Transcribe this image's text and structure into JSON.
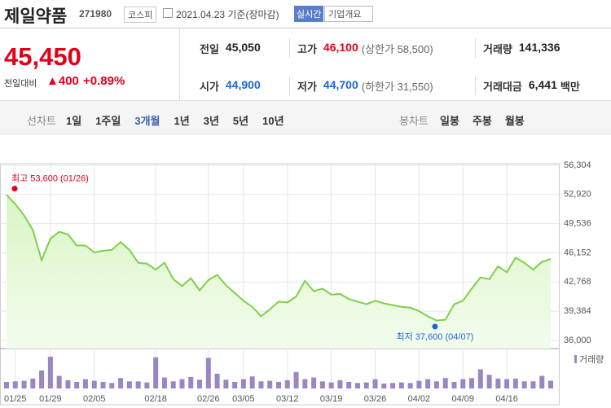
{
  "header": {
    "title": "제일약품",
    "code": "271980",
    "market": "코스피",
    "date": "2021.04.23 기준(장마감)",
    "realtime": "실시간",
    "company": "기업개요"
  },
  "summary": {
    "price": "45,450",
    "change_label": "전일대비",
    "change": "▲400",
    "change_pct": "+0.89%",
    "stats": [
      {
        "label": "전일",
        "value": "45,050"
      },
      {
        "label": "고가",
        "value": "46,100",
        "note": "(상한가 58,500)"
      },
      {
        "label": "거래량",
        "value": "141,336"
      },
      {
        "label": "시가",
        "value": "44,900"
      },
      {
        "label": "저가",
        "value": "44,700",
        "note": "(하한가 31,550)"
      },
      {
        "label": "거래대금",
        "value": "6,441",
        "unit": "백만"
      }
    ]
  },
  "nav": {
    "line_label": "선차트",
    "line_items": [
      "1일",
      "1주일",
      "3개월",
      "1년",
      "3년",
      "5년",
      "10년"
    ],
    "active": "3개월",
    "candle_label": "봉차트",
    "candle_items": [
      "일봉",
      "주봉",
      "월봉"
    ]
  },
  "chart_data": [
    {
      "type": "area",
      "color": "#7ed04b",
      "categories": [
        null,
        "01/25",
        null,
        null,
        null,
        "01/29",
        null,
        null,
        null,
        null,
        "02/05",
        null,
        null,
        null,
        null,
        null,
        null,
        "02/18",
        null,
        null,
        null,
        null,
        null,
        "02/26",
        null,
        null,
        null,
        "03/05",
        null,
        null,
        null,
        null,
        "03/12",
        null,
        null,
        null,
        null,
        "03/19",
        null,
        null,
        null,
        null,
        "03/26",
        null,
        null,
        null,
        null,
        "04/02",
        null,
        null,
        null,
        null,
        "04/09",
        null,
        null,
        null,
        null,
        "04/16",
        null,
        null,
        null,
        null,
        null
      ],
      "values": [
        52900,
        51800,
        50500,
        48800,
        45300,
        47800,
        48600,
        48300,
        47000,
        47000,
        46200,
        46400,
        46500,
        47400,
        46500,
        45000,
        44900,
        44200,
        45000,
        43100,
        42300,
        43200,
        41800,
        43000,
        43600,
        42400,
        41500,
        40600,
        39900,
        38800,
        39600,
        40500,
        40400,
        41100,
        42900,
        41700,
        42000,
        41300,
        41400,
        40800,
        40500,
        40200,
        40600,
        40300,
        40100,
        39900,
        39800,
        39400,
        38800,
        38300,
        38400,
        40200,
        40600,
        42000,
        43300,
        43100,
        44600,
        43900,
        45600,
        45000,
        44200,
        45100,
        45450
      ],
      "ylim": [
        36000,
        56304
      ],
      "yticks": [
        {
          "value": 36000,
          "label": "36,000"
        },
        {
          "value": 39384,
          "label": "39,384"
        },
        {
          "value": 42768,
          "label": "42,768"
        },
        {
          "value": 46152,
          "label": "46,152"
        },
        {
          "value": 49536,
          "label": "49,536"
        },
        {
          "value": 52920,
          "label": "52,920"
        },
        {
          "value": 56304,
          "label": "56,304"
        }
      ],
      "grid": true,
      "high": {
        "label": "최고 53,600 (01/26)",
        "value": 53600,
        "color": "#e0001a"
      },
      "low": {
        "label": "최저 37,600 (04/07)",
        "value": 37600,
        "color": "#1a66d6"
      }
    },
    {
      "type": "bar",
      "color": "#9b86c4",
      "series": [
        {
          "name": "거래량",
          "color": "#9b86c4",
          "values": [
            120000,
            130000,
            140000,
            180000,
            330000,
            580000,
            230000,
            150000,
            120000,
            170000,
            140000,
            120000,
            100000,
            190000,
            130000,
            130000,
            110000,
            570000,
            200000,
            130000,
            170000,
            210000,
            160000,
            560000,
            270000,
            160000,
            120000,
            170000,
            220000,
            130000,
            140000,
            120000,
            150000,
            300000,
            170000,
            200000,
            130000,
            110000,
            150000,
            120000,
            100000,
            110000,
            170000,
            90000,
            100000,
            110000,
            100000,
            140000,
            170000,
            130000,
            190000,
            120000,
            170000,
            190000,
            350000,
            250000,
            180000,
            170000,
            180000,
            130000,
            130000,
            230000,
            141336
          ]
        }
      ],
      "ylim": [
        0,
        700000
      ]
    }
  ]
}
